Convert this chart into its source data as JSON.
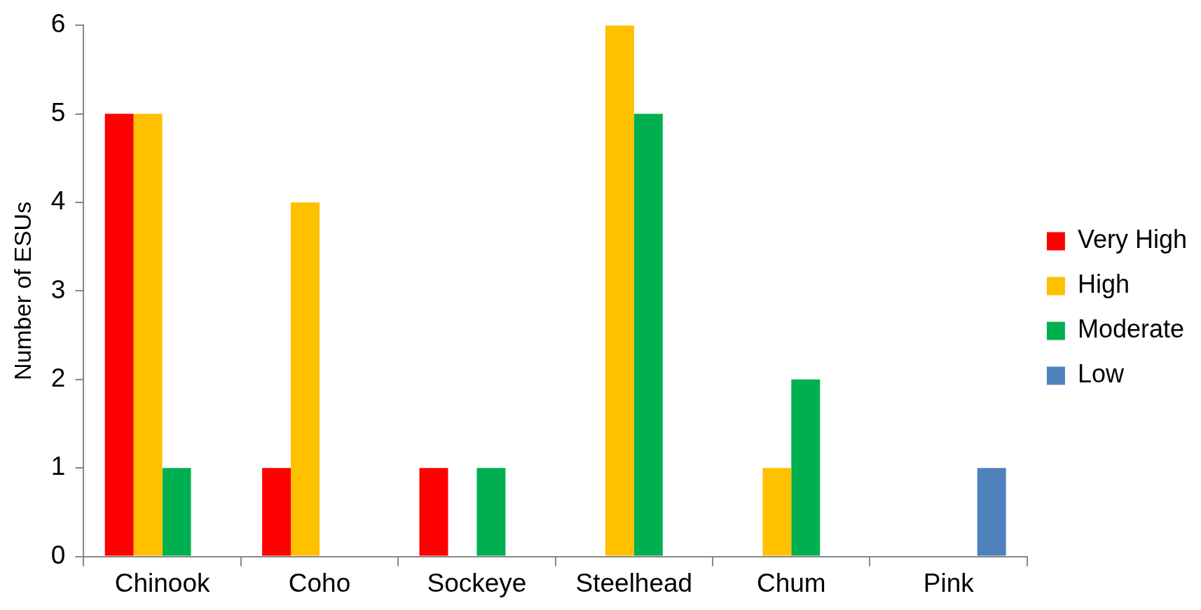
{
  "chart_data": {
    "type": "bar",
    "ylabel": "Number of ESUs",
    "categories": [
      "Chinook",
      "Coho",
      "Sockeye",
      "Steelhead",
      "Chum",
      "Pink"
    ],
    "series": [
      {
        "name": "Very High",
        "color": "#ff0000",
        "values": [
          5,
          1,
          1,
          0,
          0,
          0
        ]
      },
      {
        "name": "High",
        "color": "#ffc000",
        "values": [
          5,
          4,
          0,
          6,
          1,
          0
        ]
      },
      {
        "name": "Moderate",
        "color": "#00b050",
        "values": [
          1,
          0,
          1,
          5,
          2,
          0
        ]
      },
      {
        "name": "Low",
        "color": "#4f81bd",
        "values": [
          0,
          0,
          0,
          0,
          0,
          1
        ]
      }
    ],
    "ylim": [
      0,
      6
    ],
    "yticks": [
      0,
      1,
      2,
      3,
      4,
      5,
      6
    ],
    "grid": false,
    "legend": "right"
  }
}
